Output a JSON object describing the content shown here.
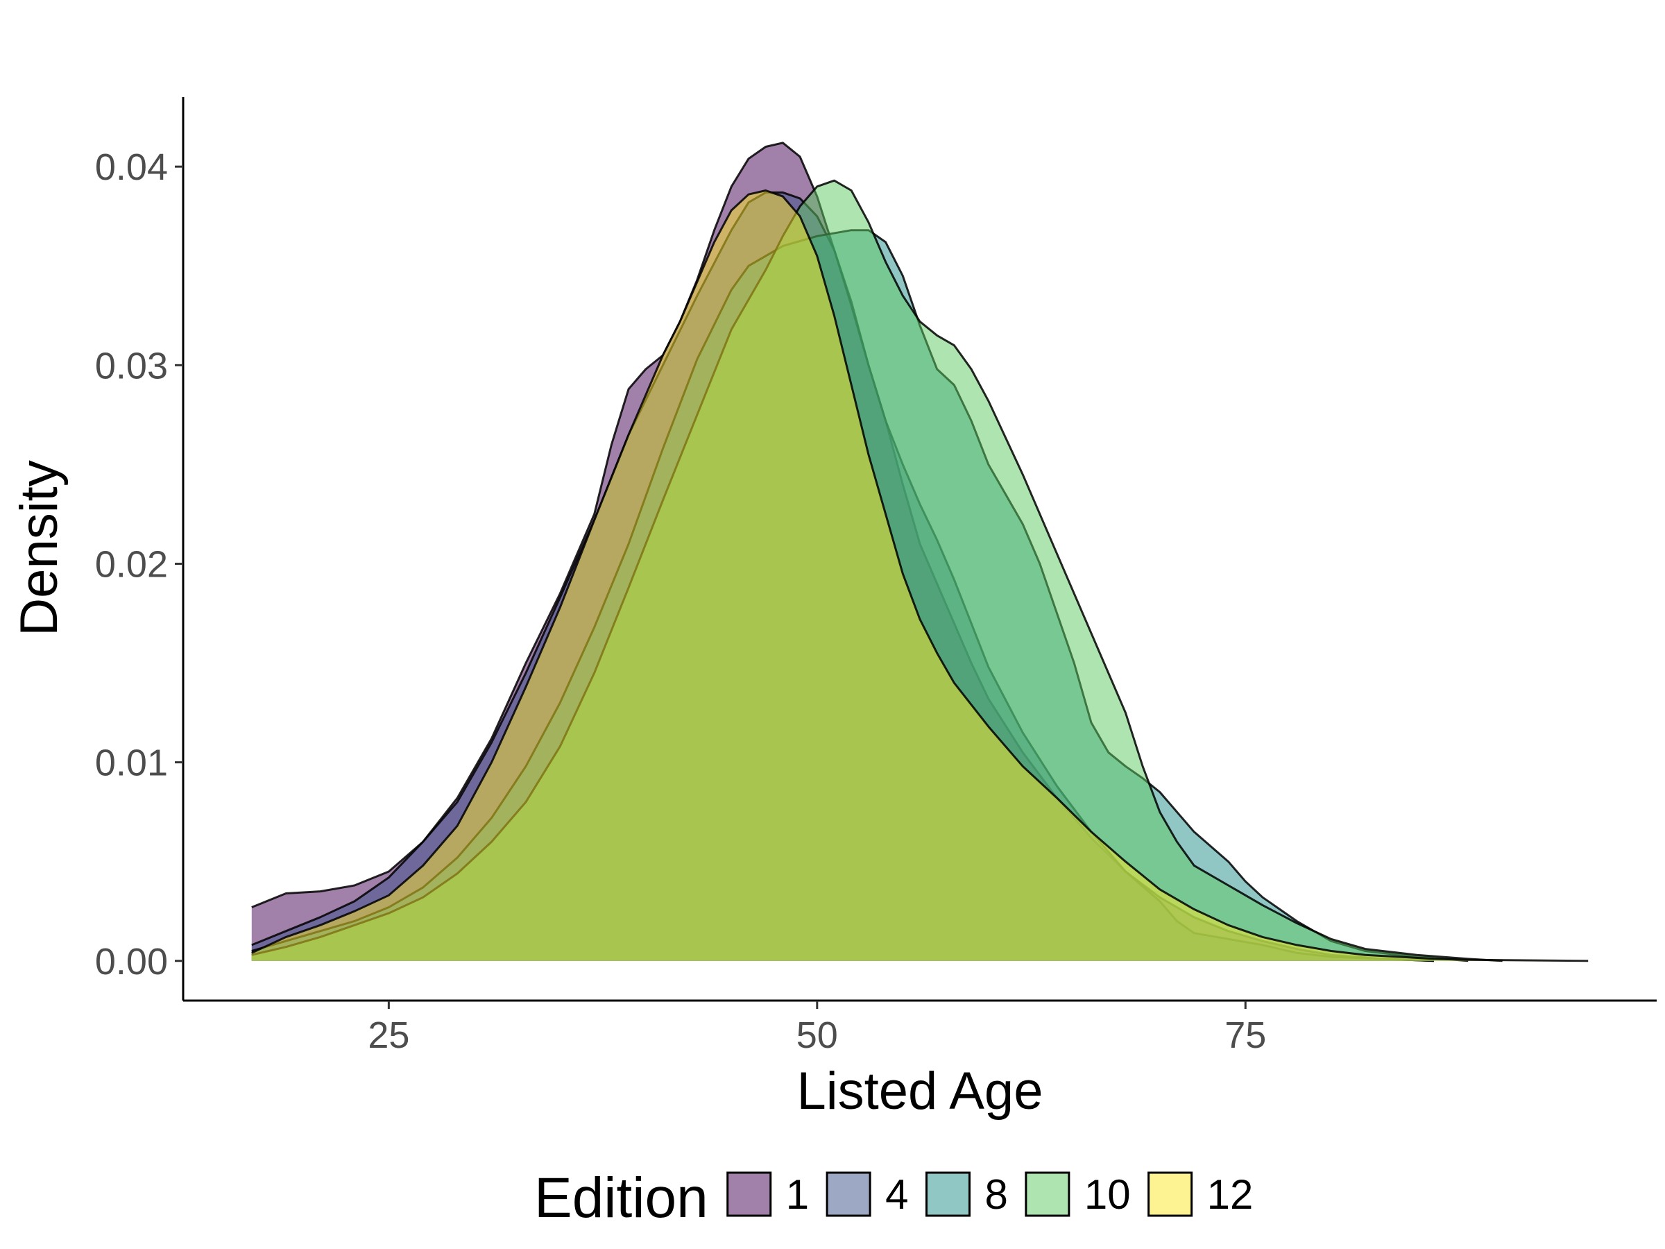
{
  "chart_data": {
    "type": "area",
    "subtype": "density",
    "title": "",
    "xlabel": "Listed Age",
    "ylabel": "Density",
    "xlim": [
      13,
      99
    ],
    "ylim": [
      -0.002,
      0.0435
    ],
    "xticks": [
      25,
      50,
      75
    ],
    "yticks": [
      0.0,
      0.01,
      0.02,
      0.03,
      0.04
    ],
    "ytick_labels": [
      "0.00",
      "0.01",
      "0.02",
      "0.03",
      "0.04"
    ],
    "grid": false,
    "legend": {
      "title": "Edition",
      "position": "bottom"
    },
    "series": [
      {
        "name": "1",
        "color": "#440154",
        "points": [
          [
            17,
            0.0027
          ],
          [
            19,
            0.0034
          ],
          [
            21,
            0.0035
          ],
          [
            23,
            0.0038
          ],
          [
            25,
            0.0045
          ],
          [
            27,
            0.006
          ],
          [
            29,
            0.0082
          ],
          [
            31,
            0.0112
          ],
          [
            33,
            0.015
          ],
          [
            35,
            0.0185
          ],
          [
            37,
            0.0225
          ],
          [
            38,
            0.026
          ],
          [
            39,
            0.0288
          ],
          [
            40,
            0.0298
          ],
          [
            41,
            0.0305
          ],
          [
            42,
            0.0322
          ],
          [
            43,
            0.0343
          ],
          [
            44,
            0.0368
          ],
          [
            45,
            0.039
          ],
          [
            46,
            0.0404
          ],
          [
            47,
            0.041
          ],
          [
            48,
            0.0412
          ],
          [
            49,
            0.0405
          ],
          [
            50,
            0.0385
          ],
          [
            51,
            0.0358
          ],
          [
            52,
            0.0332
          ],
          [
            53,
            0.03
          ],
          [
            54,
            0.0272
          ],
          [
            55,
            0.024
          ],
          [
            56,
            0.021
          ],
          [
            57,
            0.019
          ],
          [
            58,
            0.017
          ],
          [
            59,
            0.015
          ],
          [
            60,
            0.0132
          ],
          [
            62,
            0.0105
          ],
          [
            64,
            0.0082
          ],
          [
            66,
            0.0062
          ],
          [
            68,
            0.0045
          ],
          [
            70,
            0.0032
          ],
          [
            72,
            0.0022
          ],
          [
            74,
            0.0015
          ],
          [
            76,
            0.001
          ],
          [
            78,
            0.0006
          ],
          [
            80,
            0.0003
          ],
          [
            83,
            0.0001
          ],
          [
            86,
            0.0
          ]
        ]
      },
      {
        "name": "4",
        "color": "#3b528b",
        "points": [
          [
            17,
            0.0008
          ],
          [
            19,
            0.0015
          ],
          [
            21,
            0.0022
          ],
          [
            23,
            0.003
          ],
          [
            25,
            0.0042
          ],
          [
            27,
            0.006
          ],
          [
            29,
            0.008
          ],
          [
            31,
            0.011
          ],
          [
            33,
            0.0145
          ],
          [
            35,
            0.0183
          ],
          [
            37,
            0.0222
          ],
          [
            39,
            0.0265
          ],
          [
            41,
            0.03
          ],
          [
            43,
            0.0335
          ],
          [
            45,
            0.0368
          ],
          [
            46,
            0.0382
          ],
          [
            47,
            0.0387
          ],
          [
            48,
            0.0387
          ],
          [
            49,
            0.0384
          ],
          [
            50,
            0.0375
          ],
          [
            51,
            0.0358
          ],
          [
            52,
            0.033
          ],
          [
            53,
            0.03
          ],
          [
            54,
            0.0272
          ],
          [
            55,
            0.025
          ],
          [
            56,
            0.023
          ],
          [
            57,
            0.0212
          ],
          [
            58,
            0.0192
          ],
          [
            59,
            0.017
          ],
          [
            60,
            0.0148
          ],
          [
            62,
            0.0115
          ],
          [
            64,
            0.0088
          ],
          [
            66,
            0.0065
          ],
          [
            68,
            0.0045
          ],
          [
            70,
            0.003
          ],
          [
            71,
            0.002
          ],
          [
            72,
            0.0014
          ],
          [
            74,
            0.0011
          ],
          [
            76,
            0.0008
          ],
          [
            78,
            0.0004
          ],
          [
            80,
            0.0002
          ],
          [
            83,
            0.0001
          ],
          [
            86,
            0.0
          ]
        ]
      },
      {
        "name": "8",
        "color": "#21908c",
        "points": [
          [
            17,
            0.0005
          ],
          [
            19,
            0.001
          ],
          [
            21,
            0.0015
          ],
          [
            23,
            0.002
          ],
          [
            25,
            0.0027
          ],
          [
            27,
            0.0037
          ],
          [
            29,
            0.0052
          ],
          [
            31,
            0.0072
          ],
          [
            33,
            0.0098
          ],
          [
            35,
            0.013
          ],
          [
            37,
            0.0168
          ],
          [
            39,
            0.021
          ],
          [
            41,
            0.0258
          ],
          [
            43,
            0.0303
          ],
          [
            45,
            0.0338
          ],
          [
            46,
            0.035
          ],
          [
            47,
            0.0355
          ],
          [
            48,
            0.036
          ],
          [
            50,
            0.0365
          ],
          [
            52,
            0.0368
          ],
          [
            53,
            0.0368
          ],
          [
            54,
            0.0362
          ],
          [
            55,
            0.0345
          ],
          [
            56,
            0.032
          ],
          [
            57,
            0.0298
          ],
          [
            58,
            0.029
          ],
          [
            59,
            0.0272
          ],
          [
            60,
            0.025
          ],
          [
            61,
            0.0235
          ],
          [
            62,
            0.022
          ],
          [
            63,
            0.02
          ],
          [
            64,
            0.0175
          ],
          [
            65,
            0.015
          ],
          [
            66,
            0.012
          ],
          [
            67,
            0.0105
          ],
          [
            68,
            0.0098
          ],
          [
            69,
            0.0092
          ],
          [
            70,
            0.0085
          ],
          [
            72,
            0.0065
          ],
          [
            74,
            0.005
          ],
          [
            75,
            0.004
          ],
          [
            76,
            0.0032
          ],
          [
            78,
            0.002
          ],
          [
            80,
            0.001
          ],
          [
            82,
            0.0005
          ],
          [
            85,
            0.0002
          ],
          [
            88,
            0.0
          ]
        ]
      },
      {
        "name": "10",
        "color": "#5ec962",
        "points": [
          [
            17,
            0.0003
          ],
          [
            19,
            0.0007
          ],
          [
            21,
            0.0012
          ],
          [
            23,
            0.0018
          ],
          [
            25,
            0.0024
          ],
          [
            27,
            0.0032
          ],
          [
            29,
            0.0044
          ],
          [
            31,
            0.006
          ],
          [
            33,
            0.008
          ],
          [
            35,
            0.0108
          ],
          [
            37,
            0.0145
          ],
          [
            39,
            0.0188
          ],
          [
            41,
            0.0232
          ],
          [
            43,
            0.0275
          ],
          [
            45,
            0.0318
          ],
          [
            47,
            0.0348
          ],
          [
            48,
            0.0365
          ],
          [
            49,
            0.038
          ],
          [
            50,
            0.039
          ],
          [
            51,
            0.0393
          ],
          [
            52,
            0.0388
          ],
          [
            53,
            0.0372
          ],
          [
            54,
            0.0352
          ],
          [
            55,
            0.0335
          ],
          [
            56,
            0.0322
          ],
          [
            57,
            0.0315
          ],
          [
            58,
            0.031
          ],
          [
            59,
            0.0298
          ],
          [
            60,
            0.0282
          ],
          [
            62,
            0.0245
          ],
          [
            64,
            0.0205
          ],
          [
            66,
            0.0165
          ],
          [
            68,
            0.0125
          ],
          [
            69,
            0.0098
          ],
          [
            70,
            0.0075
          ],
          [
            71,
            0.006
          ],
          [
            72,
            0.0048
          ],
          [
            74,
            0.0038
          ],
          [
            76,
            0.0028
          ],
          [
            78,
            0.0019
          ],
          [
            80,
            0.0011
          ],
          [
            82,
            0.0006
          ],
          [
            85,
            0.0003
          ],
          [
            88,
            0.0001
          ],
          [
            90,
            0.0
          ]
        ]
      },
      {
        "name": "12",
        "color": "#fde725",
        "points": [
          [
            17,
            0.0004
          ],
          [
            19,
            0.0012
          ],
          [
            21,
            0.0018
          ],
          [
            23,
            0.0025
          ],
          [
            25,
            0.0033
          ],
          [
            27,
            0.0048
          ],
          [
            29,
            0.0068
          ],
          [
            31,
            0.01
          ],
          [
            33,
            0.0138
          ],
          [
            35,
            0.0178
          ],
          [
            37,
            0.0222
          ],
          [
            39,
            0.0265
          ],
          [
            41,
            0.0305
          ],
          [
            42,
            0.0322
          ],
          [
            43,
            0.0342
          ],
          [
            44,
            0.0362
          ],
          [
            45,
            0.0378
          ],
          [
            46,
            0.0386
          ],
          [
            47,
            0.0388
          ],
          [
            48,
            0.0385
          ],
          [
            49,
            0.0375
          ],
          [
            50,
            0.0355
          ],
          [
            51,
            0.0325
          ],
          [
            52,
            0.029
          ],
          [
            53,
            0.0255
          ],
          [
            54,
            0.0225
          ],
          [
            55,
            0.0195
          ],
          [
            56,
            0.0172
          ],
          [
            57,
            0.0155
          ],
          [
            58,
            0.014
          ],
          [
            60,
            0.0118
          ],
          [
            62,
            0.0098
          ],
          [
            64,
            0.0082
          ],
          [
            66,
            0.0065
          ],
          [
            68,
            0.005
          ],
          [
            70,
            0.0036
          ],
          [
            72,
            0.0026
          ],
          [
            74,
            0.0018
          ],
          [
            76,
            0.0012
          ],
          [
            78,
            0.0008
          ],
          [
            80,
            0.0005
          ],
          [
            82,
            0.0003
          ],
          [
            84,
            0.0002
          ],
          [
            86,
            0.0001
          ],
          [
            88,
            5e-05
          ],
          [
            95,
            0.0
          ]
        ]
      }
    ]
  }
}
